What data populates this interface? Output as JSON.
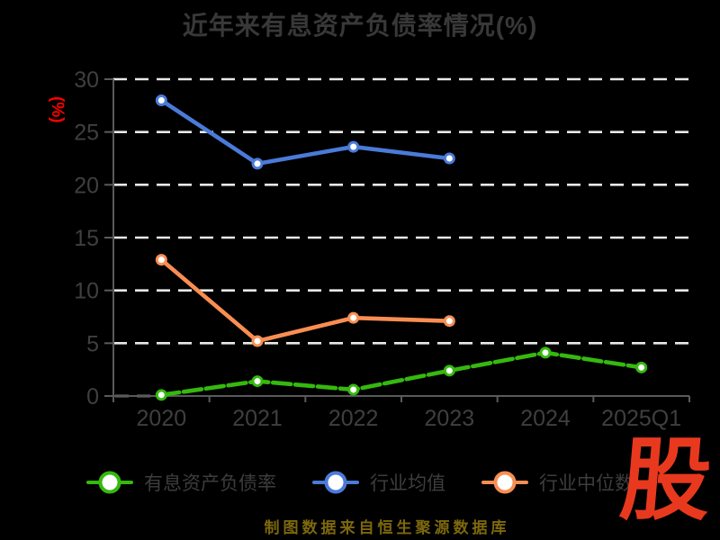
{
  "title": "近年来有息资产负债率情况(%)",
  "footer_note": "制图数据来自恒生聚源数据库",
  "logo_glyph": "股",
  "colors": {
    "background": "#000000",
    "title_text": "#383838",
    "axis_line": "#5a5a5a",
    "tick_label": "#3f3f3f",
    "gridline": "#e8e8e8",
    "y_unit_label": "#ff0000",
    "footer_text": "#7d680d",
    "logo_red": "#e8391e"
  },
  "chart_data": {
    "type": "line",
    "title": "近年来有息资产负债率情况(%)",
    "xlabel": "",
    "ylabel": "(%)",
    "categories": [
      "2020",
      "2021",
      "2022",
      "2023",
      "2024",
      "2025Q1"
    ],
    "y_ticks": [
      0,
      5,
      10,
      15,
      20,
      25,
      30
    ],
    "ylim": [
      0,
      30
    ],
    "grid": "horizontal-dashed-white",
    "legend_position": "bottom",
    "series": [
      {
        "key": "interest-bearing-debt-ratio",
        "name": "有息资产负债率",
        "color": "#35b90e",
        "line_style": "dashed",
        "marker": "circle-white-fill",
        "values": [
          0.1,
          1.4,
          0.6,
          2.4,
          4.1,
          2.7
        ]
      },
      {
        "key": "industry-average",
        "name": "行业均值",
        "color": "#4a7bd9",
        "line_style": "solid",
        "marker": "circle-white-fill",
        "values": [
          28.0,
          22.0,
          23.6,
          22.5,
          null,
          null
        ]
      },
      {
        "key": "industry-median",
        "name": "行业中位数",
        "color": "#f98e52",
        "line_style": "solid",
        "marker": "circle-white-fill",
        "values": [
          12.9,
          5.2,
          7.4,
          7.1,
          null,
          null
        ]
      }
    ]
  }
}
